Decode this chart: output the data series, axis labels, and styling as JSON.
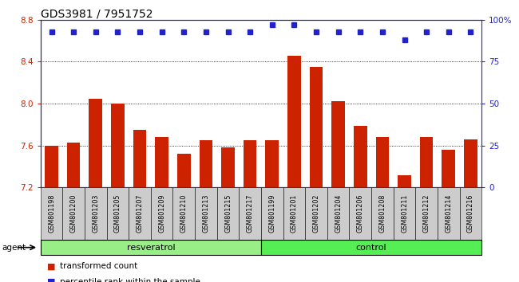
{
  "title": "GDS3981 / 7951752",
  "categories": [
    "GSM801198",
    "GSM801200",
    "GSM801203",
    "GSM801205",
    "GSM801207",
    "GSM801209",
    "GSM801210",
    "GSM801213",
    "GSM801215",
    "GSM801217",
    "GSM801199",
    "GSM801201",
    "GSM801202",
    "GSM801204",
    "GSM801206",
    "GSM801208",
    "GSM801211",
    "GSM801212",
    "GSM801214",
    "GSM801216"
  ],
  "bar_values": [
    7.6,
    7.63,
    8.05,
    8.0,
    7.75,
    7.68,
    7.52,
    7.65,
    7.58,
    7.65,
    7.65,
    8.46,
    8.35,
    8.02,
    7.79,
    7.68,
    7.32,
    7.68,
    7.56,
    7.66
  ],
  "percentile_values": [
    93,
    93,
    93,
    93,
    93,
    93,
    93,
    93,
    93,
    93,
    97,
    97,
    93,
    93,
    93,
    93,
    88,
    93,
    93,
    93
  ],
  "resveratrol_count": 10,
  "control_count": 10,
  "resveratrol_label": "resveratrol",
  "control_label": "control",
  "agent_label": "agent",
  "bar_color": "#cc2200",
  "percentile_color": "#2222cc",
  "ylim_left": [
    7.2,
    8.8
  ],
  "ylim_right": [
    0,
    100
  ],
  "yticks_left": [
    7.2,
    7.6,
    8.0,
    8.4,
    8.8
  ],
  "yticks_right": [
    0,
    25,
    50,
    75,
    100
  ],
  "grid_lines": [
    7.6,
    8.0,
    8.4
  ],
  "legend_tc": "transformed count",
  "legend_pr": "percentile rank within the sample",
  "resveratrol_color": "#99ee88",
  "control_color": "#55ee55",
  "background_color": "#cccccc",
  "title_fontsize": 10,
  "tick_fontsize": 7.5,
  "bar_width": 0.6
}
